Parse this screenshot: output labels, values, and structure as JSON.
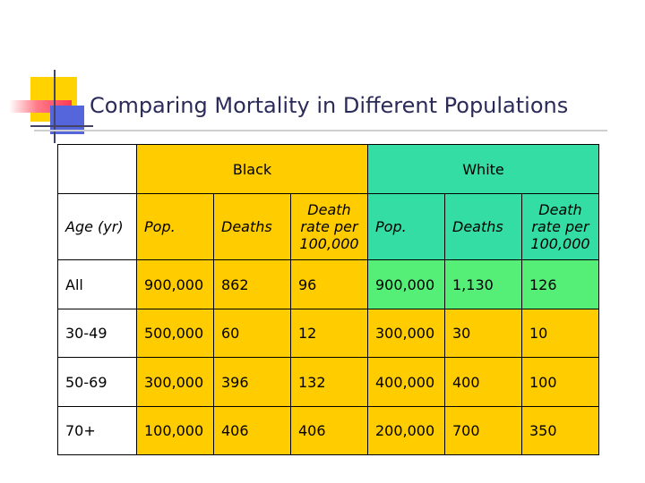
{
  "slide": {
    "title": "Comparing Mortality in Different Populations"
  },
  "table": {
    "group_headers": {
      "black": "Black",
      "white": "White"
    },
    "col_headers": {
      "age": "Age (yr)",
      "black_pop": "Pop.",
      "black_deaths": "Deaths",
      "black_rate": "Death rate per 100,000",
      "white_pop": "Pop.",
      "white_deaths": "Deaths",
      "white_rate": "Death rate per 100,000"
    },
    "rows": [
      {
        "age": "All",
        "b_pop": "900,000",
        "b_deaths": "862",
        "b_rate": "96",
        "w_pop": "900,000",
        "w_deaths": "1,130",
        "w_rate": "126"
      },
      {
        "age": "30-49",
        "b_pop": "500,000",
        "b_deaths": "60",
        "b_rate": "12",
        "w_pop": "300,000",
        "w_deaths": "30",
        "w_rate": "10"
      },
      {
        "age": "50-69",
        "b_pop": "300,000",
        "b_deaths": "396",
        "b_rate": "132",
        "w_pop": "400,000",
        "w_deaths": "400",
        "w_rate": "100"
      },
      {
        "age": "70+",
        "b_pop": "100,000",
        "b_deaths": "406",
        "b_rate": "406",
        "w_pop": "200,000",
        "w_deaths": "700",
        "w_rate": "350"
      }
    ]
  },
  "colors": {
    "black_group": "#ffcc00",
    "white_group": "#33dda3",
    "highlight": "#55ee77",
    "title_text": "#2b2b5a"
  }
}
